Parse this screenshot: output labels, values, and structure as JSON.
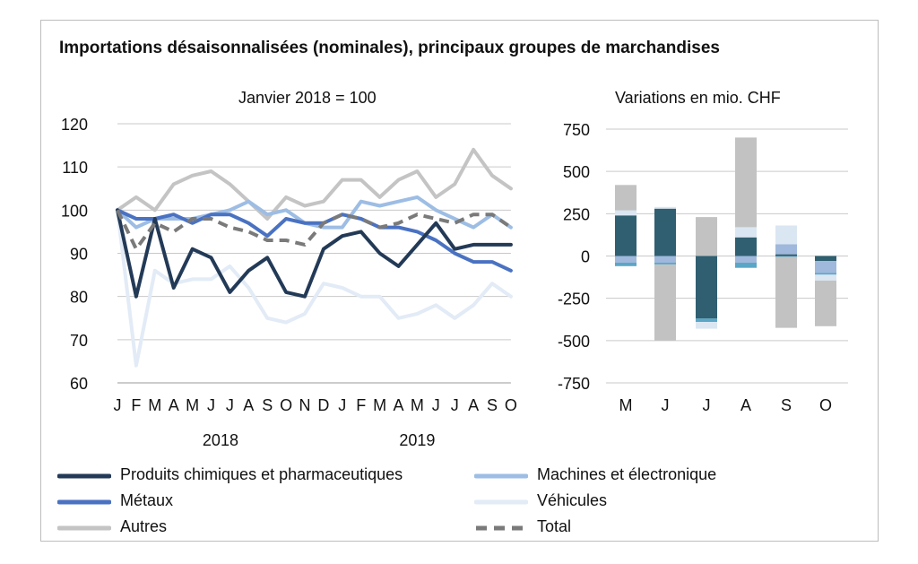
{
  "title": "Importations désaisonnalisées (nominales), principaux groupes de marchandises",
  "colors": {
    "chem": "#233a57",
    "machines": "#9dbde4",
    "metaux": "#4a72c2",
    "vehicules": "#e2ebf6",
    "autres": "#c4c4c4",
    "total": "#7a7a7a",
    "grid": "#c9c9c9",
    "chem_bar": "#2f5f70",
    "machines_bar": "#9fb8dc",
    "metaux_bar": "#5aa6c6",
    "vehicules_bar": "#dbe6f3",
    "autres_bar": "#c2c2c2"
  },
  "legend": [
    {
      "key": "chem",
      "label": "Produits chimiques et pharmaceutiques"
    },
    {
      "key": "machines",
      "label": "Machines et électronique"
    },
    {
      "key": "metaux",
      "label": "Métaux"
    },
    {
      "key": "vehicules",
      "label": "Véhicules"
    },
    {
      "key": "autres",
      "label": "Autres"
    },
    {
      "key": "total",
      "label": "Total"
    }
  ],
  "chart_data": [
    {
      "type": "line",
      "subtitle": "Janvier 2018 = 100",
      "ylim": [
        60,
        120
      ],
      "yticks": [
        60,
        70,
        80,
        90,
        100,
        110,
        120
      ],
      "grid": true,
      "categories": [
        "J",
        "F",
        "M",
        "A",
        "M",
        "J",
        "J",
        "A",
        "S",
        "O",
        "N",
        "D",
        "J",
        "F",
        "M",
        "A",
        "M",
        "J",
        "J",
        "A",
        "S",
        "O"
      ],
      "year_labels": [
        {
          "label": "2018",
          "index": 5.5
        },
        {
          "label": "2019",
          "index": 16
        }
      ],
      "series": [
        {
          "key": "vehicules",
          "name": "Véhicules",
          "values": [
            100,
            64,
            86,
            83,
            84,
            84,
            87,
            82,
            75,
            74,
            76,
            83,
            82,
            80,
            80,
            75,
            76,
            78,
            75,
            78,
            83,
            80
          ]
        },
        {
          "key": "autres",
          "name": "Autres",
          "values": [
            100,
            103,
            100,
            106,
            108,
            109,
            106,
            102,
            98,
            103,
            101,
            102,
            107,
            107,
            103,
            107,
            109,
            103,
            106,
            114,
            108,
            105
          ]
        },
        {
          "key": "machines",
          "name": "Machines et électronique",
          "values": [
            100,
            96,
            98,
            98,
            98,
            99,
            100,
            102,
            99,
            100,
            97,
            96,
            96,
            102,
            101,
            102,
            103,
            100,
            98,
            96,
            99,
            96
          ]
        },
        {
          "key": "metaux",
          "name": "Métaux",
          "values": [
            100,
            98,
            98,
            99,
            97,
            99,
            99,
            97,
            94,
            98,
            97,
            97,
            99,
            98,
            96,
            96,
            95,
            93,
            90,
            88,
            88,
            86
          ]
        },
        {
          "key": "chem",
          "name": "Produits chimiques et pharmaceutiques",
          "values": [
            100,
            80,
            98,
            82,
            91,
            89,
            81,
            86,
            89,
            81,
            80,
            91,
            94,
            95,
            90,
            87,
            92,
            97,
            91,
            92,
            92,
            92
          ]
        },
        {
          "key": "total",
          "name": "Total",
          "values": [
            100,
            91,
            97,
            95,
            98,
            98,
            96,
            95,
            93,
            93,
            92,
            97,
            99,
            98,
            96,
            97,
            99,
            98,
            97,
            99,
            99,
            96
          ]
        }
      ]
    },
    {
      "type": "bar",
      "stacked": true,
      "subtitle": "Variations en mio. CHF",
      "ylim": [
        -750,
        750
      ],
      "yticks": [
        750,
        500,
        250,
        0,
        -250,
        -500,
        -750
      ],
      "categories": [
        "M",
        "J",
        "J",
        "A",
        "S",
        "O"
      ],
      "series": [
        {
          "key": "chem_bar",
          "name": "Produits chimiques et pharmaceutiques",
          "values": [
            240,
            280,
            -370,
            110,
            10,
            -30
          ]
        },
        {
          "key": "machines_bar",
          "name": "Machines et électronique",
          "values": [
            -40,
            -40,
            0,
            -40,
            60,
            -70
          ]
        },
        {
          "key": "metaux_bar",
          "name": "Métaux",
          "values": [
            -20,
            -10,
            -20,
            -30,
            -5,
            -10
          ]
        },
        {
          "key": "vehicules_bar",
          "name": "Véhicules",
          "values": [
            30,
            10,
            -40,
            60,
            110,
            -35
          ]
        },
        {
          "key": "autres_bar",
          "name": "Autres",
          "values": [
            150,
            -450,
            230,
            530,
            -420,
            -270
          ]
        }
      ]
    }
  ]
}
